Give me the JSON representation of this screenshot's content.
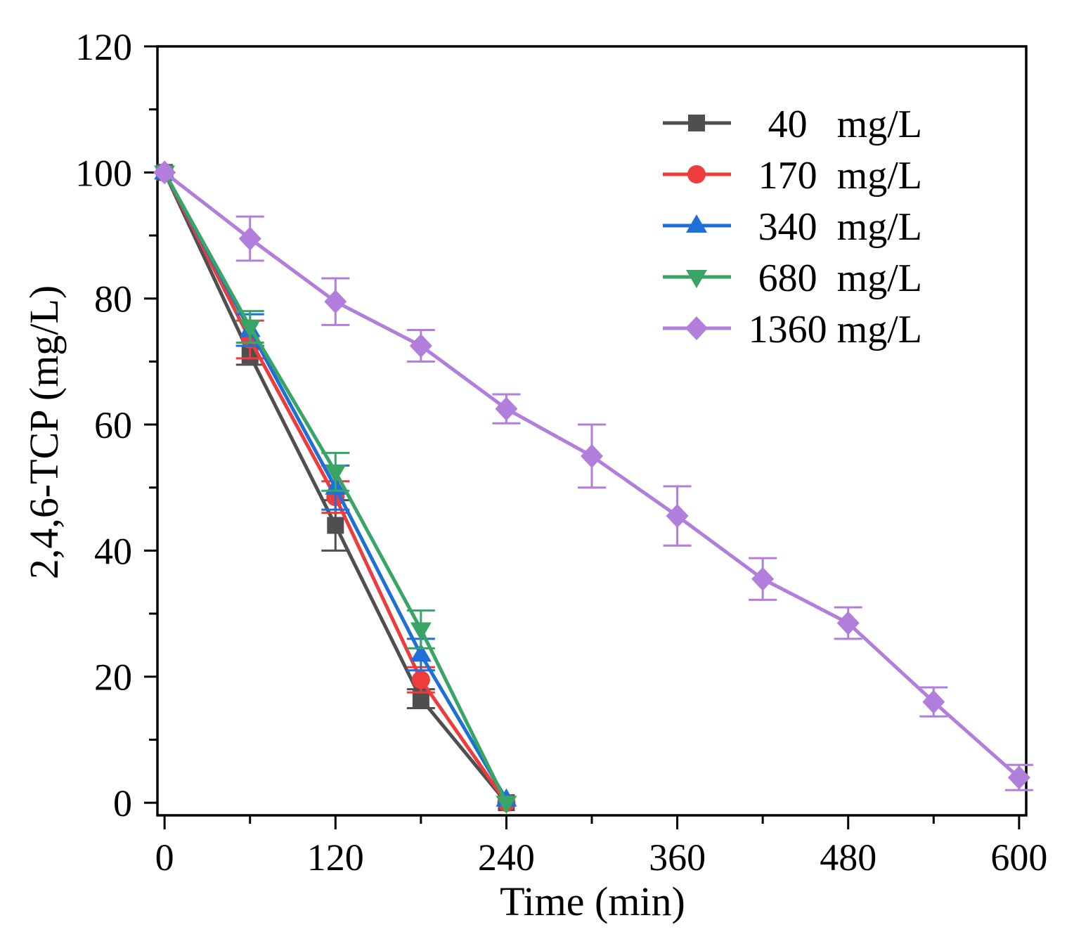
{
  "chart_data": {
    "type": "line",
    "title": "",
    "xlabel": "Time (min)",
    "ylabel": "2,4,6-TCP (mg/L)",
    "xlim": [
      -5,
      605
    ],
    "ylim": [
      -2,
      120
    ],
    "xticks": [
      0,
      120,
      240,
      360,
      480,
      600
    ],
    "xtick_labels": [
      "0",
      "120",
      "240",
      "360",
      "480",
      "600"
    ],
    "xticks_minor": [
      60,
      180,
      300,
      420,
      540
    ],
    "yticks": [
      0,
      20,
      40,
      60,
      80,
      100,
      120
    ],
    "ytick_labels": [
      "0",
      "20",
      "40",
      "60",
      "80",
      "100",
      "120"
    ],
    "yticks_minor": [
      10,
      30,
      50,
      70,
      90,
      110
    ],
    "grid": false,
    "legend": "top-right",
    "series": [
      {
        "name": "40   mg/L",
        "color": "#4f4f4f",
        "marker": "square",
        "x": [
          0,
          60,
          120,
          180,
          240
        ],
        "y": [
          100,
          71,
          44,
          16.5,
          0
        ],
        "yerr": [
          0,
          1.5,
          4,
          1.5,
          0
        ]
      },
      {
        "name": "170  mg/L",
        "color": "#ee3b3b",
        "marker": "circle",
        "x": [
          0,
          60,
          120,
          180,
          240
        ],
        "y": [
          100,
          73.5,
          48.5,
          19.5,
          0
        ],
        "yerr": [
          0,
          3,
          2.5,
          2,
          0
        ]
      },
      {
        "name": "340  mg/L",
        "color": "#1f6fd8",
        "marker": "triangle-up",
        "x": [
          0,
          60,
          120,
          180,
          240
        ],
        "y": [
          100,
          75,
          50,
          23.5,
          0.5
        ],
        "yerr": [
          0,
          2.5,
          3.5,
          2.5,
          0
        ]
      },
      {
        "name": "680  mg/L",
        "color": "#38a566",
        "marker": "triangle-down",
        "x": [
          0,
          60,
          120,
          180,
          240
        ],
        "y": [
          100,
          75.5,
          52.5,
          27.5,
          0
        ],
        "yerr": [
          0,
          2.5,
          3,
          3,
          0
        ]
      },
      {
        "name": "1360 mg/L",
        "color": "#b27edc",
        "marker": "diamond",
        "x": [
          0,
          60,
          120,
          180,
          240,
          300,
          360,
          420,
          480,
          540,
          600
        ],
        "y": [
          100,
          89.5,
          79.5,
          72.5,
          62.5,
          55,
          45.5,
          35.5,
          28.5,
          16,
          4
        ],
        "yerr": [
          0,
          3.5,
          3.7,
          2.5,
          2.3,
          5,
          4.7,
          3.3,
          2.5,
          2.3,
          2
        ]
      }
    ]
  }
}
